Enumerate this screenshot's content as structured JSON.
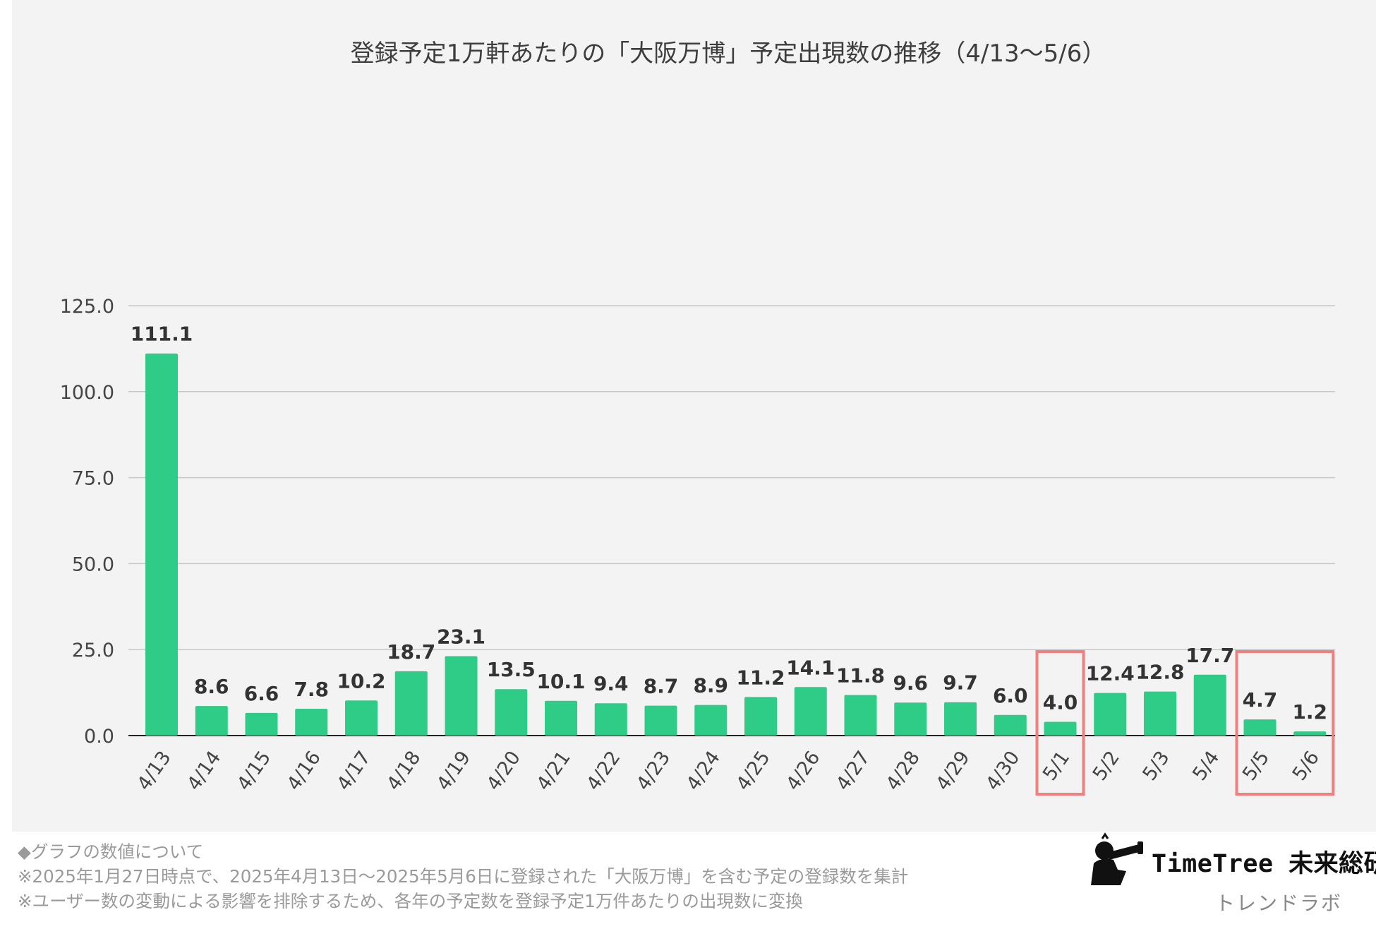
{
  "chart_data": {
    "type": "bar",
    "title": "登録予定1万軒あたりの「大阪万博」予定出現数の推移（4/13〜5/6）",
    "categories": [
      "4/13",
      "4/14",
      "4/15",
      "4/16",
      "4/17",
      "4/18",
      "4/19",
      "4/20",
      "4/21",
      "4/22",
      "4/23",
      "4/24",
      "4/25",
      "4/26",
      "4/27",
      "4/28",
      "4/29",
      "4/30",
      "5/1",
      "5/2",
      "5/3",
      "5/4",
      "5/5",
      "5/6"
    ],
    "values": [
      111.1,
      8.6,
      6.6,
      7.8,
      10.2,
      18.7,
      23.1,
      13.5,
      10.1,
      9.4,
      8.7,
      8.9,
      11.2,
      14.1,
      11.8,
      9.6,
      9.7,
      6.0,
      4.0,
      12.4,
      12.8,
      17.7,
      4.7,
      1.2
    ],
    "data_labels": [
      "111.1",
      "8.6",
      "6.6",
      "7.8",
      "10.2",
      "18.7",
      "23.1",
      "13.5",
      "10.1",
      "9.4",
      "8.7",
      "8.9",
      "11.2",
      "14.1",
      "11.8",
      "9.6",
      "9.7",
      "6.0",
      "4.0",
      "12.4",
      "12.8",
      "17.7",
      "4.7",
      "1.2"
    ],
    "yticks": [
      0,
      25,
      50,
      75,
      100,
      125
    ],
    "ytick_labels": [
      "0.0",
      "25.0",
      "50.0",
      "75.0",
      "100.0",
      "125.0"
    ],
    "ylim": [
      0,
      125
    ],
    "xlabel": "",
    "ylabel": "",
    "grid": true,
    "bar_color": "#2ecc87",
    "highlight_color": "#f08080",
    "highlight_groups": [
      [
        "5/1"
      ],
      [
        "5/5",
        "5/6"
      ]
    ]
  },
  "notes": {
    "heading": "◆グラフの数値について",
    "line1": "※2025年1月27日時点で、2025年4月13日〜2025年5月6日に登録された「大阪万博」を含む予定の登録数を集計",
    "line2": "※ユーザー数の変動による影響を排除するため、各年の予定数を登録予定1万件あたりの出現数に変換"
  },
  "brand": {
    "name": "TimeTree 未来総研",
    "sub": "トレンドラボ",
    "logo_icon": "telescope-person-icon"
  }
}
